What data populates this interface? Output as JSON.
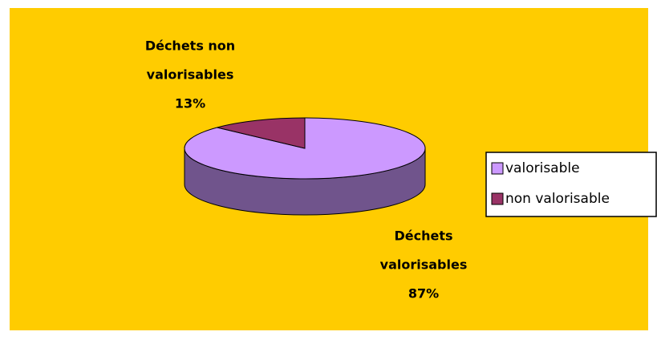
{
  "chart_data": {
    "type": "pie",
    "categories": [
      "valorisable",
      "non valorisable"
    ],
    "values": [
      87,
      13
    ],
    "value_labels": [
      "87%",
      "13%"
    ],
    "data_label_names": [
      [
        "Déchets",
        "valorisables"
      ],
      [
        "Déchets non",
        "valorisables"
      ]
    ],
    "colors": [
      "#CC99FF",
      "#993366"
    ],
    "legend": "right"
  }
}
